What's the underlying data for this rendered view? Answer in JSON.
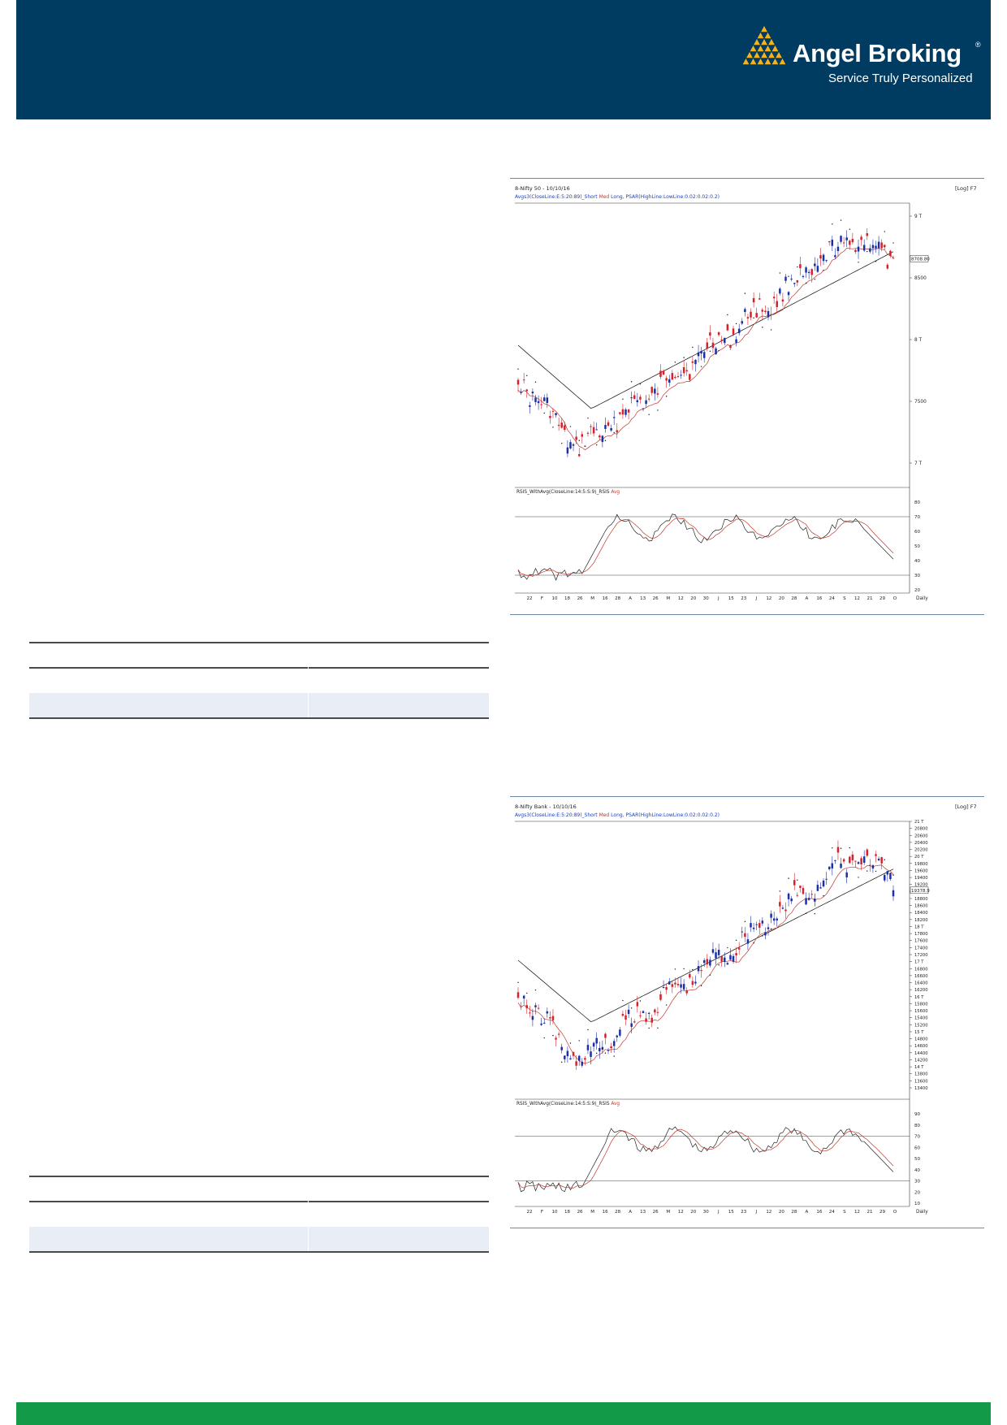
{
  "brand": {
    "name": "Angel Broking",
    "registered_mark": "®",
    "tagline": "Service Truly Personalized",
    "header_color": "#003b62",
    "footer_color": "#129a48",
    "logo_color": "#f5b21b"
  },
  "charts": [
    {
      "id": "nifty",
      "title": "8-Nifty 50 - 10/10/16",
      "indicator_line": "Avgs3(CloseLine:E:5:20:89)_Short Med Long, PSAR(HighLine:LowLine:0.02:0.02:0.2)",
      "indicator_parts": [
        "Avgs3(CloseLine:E:5:20:89)_Short ",
        "Med",
        " Long, ",
        "PSAR(HighLine:LowLine:0.02:0.02:0.2)"
      ],
      "scale_label": "[Log] F7",
      "price_axis": [
        "9 T",
        "8500",
        "8 T",
        "7500",
        "7 T"
      ],
      "last_price": "8708.80",
      "rsi_title": "RSIS_WithAvg(CloseLine:14:5:S:9)_RSIS",
      "rsi_avg_label": "Avg",
      "rsi_axis": [
        "80",
        "70",
        "60",
        "50",
        "40",
        "30",
        "20"
      ],
      "date_axis": [
        "22",
        "F",
        "10",
        "18",
        "26",
        "M",
        "16",
        "28",
        "A",
        "13",
        "26",
        "M",
        "12",
        "20",
        "30",
        "J",
        "15",
        "23",
        "J",
        "12",
        "20",
        "28",
        "A",
        "16",
        "24",
        "S",
        "12",
        "21",
        "29",
        "O"
      ],
      "period": "Daily"
    },
    {
      "id": "banknifty",
      "title": "8-Nifty Bank - 10/10/16",
      "indicator_line": "Avgs3(CloseLine:E:5:20:89)_Short Med Long, PSAR(HighLine:LowLine:0.02:0.02:0.2)",
      "indicator_parts": [
        "Avgs3(CloseLine:E:5:20:89)_Short ",
        "Med",
        " Long, ",
        "PSAR(HighLine:LowLine:0.02:0.02:0.2)"
      ],
      "scale_label": "[Log] F7",
      "price_axis": [
        "21 T",
        "20800",
        "20600",
        "20400",
        "20200",
        "20 T",
        "19800",
        "19600",
        "19400",
        "19200",
        "19 T",
        "18800",
        "18600",
        "18400",
        "18200",
        "18 T",
        "17800",
        "17600",
        "17400",
        "17200",
        "17 T",
        "16800",
        "16600",
        "16400",
        "16200",
        "16 T",
        "15800",
        "15600",
        "15400",
        "15200",
        "15 T",
        "14800",
        "14600",
        "14400",
        "14200",
        "14 T",
        "13800",
        "13600",
        "13400"
      ],
      "last_price": "19378.9",
      "rsi_title": "RSIS_WithAvg(CloseLine:14:5:S:9)_RSIS",
      "rsi_avg_label": "Avg",
      "rsi_axis": [
        "90",
        "80",
        "70",
        "60",
        "50",
        "40",
        "30",
        "20",
        "10"
      ],
      "date_axis": [
        "22",
        "F",
        "10",
        "18",
        "26",
        "M",
        "16",
        "28",
        "A",
        "13",
        "26",
        "M",
        "12",
        "20",
        "30",
        "J",
        "15",
        "23",
        "J",
        "12",
        "20",
        "28",
        "A",
        "16",
        "24",
        "S",
        "12",
        "21",
        "29",
        "O"
      ],
      "period": "Daily"
    }
  ]
}
